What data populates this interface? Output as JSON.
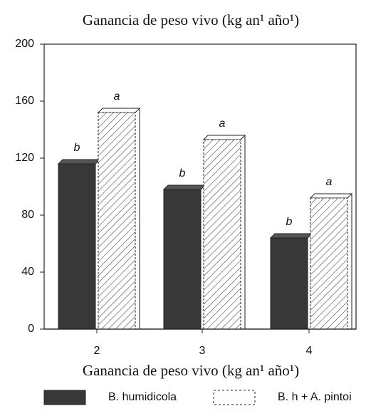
{
  "chart_data": {
    "type": "bar",
    "title": "Ganancia de peso vivo (kg an¹ año¹)",
    "x_label": "Ganancia de peso vivo (kg an¹ año¹)",
    "categories": [
      "2",
      "3",
      "4"
    ],
    "series": [
      {
        "name": "B. humidicola",
        "color": "#383838",
        "values": [
          116,
          98,
          64
        ],
        "letters": [
          "b",
          "b",
          "b"
        ]
      },
      {
        "name": "B. h + A. pintoi",
        "color": "#ffffff",
        "values": [
          152,
          133,
          92
        ],
        "letters": [
          "a",
          "a",
          "a"
        ]
      }
    ],
    "ylim": [
      0,
      200
    ],
    "yticks": [
      0,
      40,
      80,
      120,
      160,
      200
    ],
    "grid": false
  }
}
